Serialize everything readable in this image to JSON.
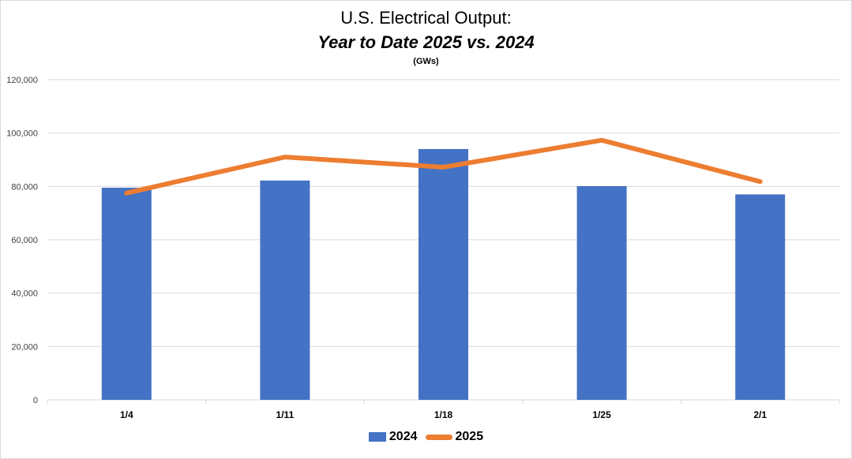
{
  "chart_data": {
    "type": "bar",
    "title": "U.S. Electrical Output:",
    "subtitle": "Year to Date 2025 vs. 2024",
    "unit_note": "(GWs)",
    "categories": [
      "1/4",
      "1/11",
      "1/18",
      "1/25",
      "2/1"
    ],
    "ylim": [
      0,
      120000
    ],
    "yticks": [
      0,
      20000,
      40000,
      60000,
      80000,
      100000,
      120000
    ],
    "ytick_labels": [
      "0",
      "20,000",
      "40,000",
      "60,000",
      "80,000",
      "100,000",
      "120,000"
    ],
    "grid": true,
    "legend_position": "bottom",
    "series": [
      {
        "name": "2024",
        "type": "bar",
        "color": "#4472c4",
        "values": [
          79500,
          82200,
          94000,
          80100,
          77000
        ]
      },
      {
        "name": "2025",
        "type": "line",
        "color": "#ed7d31",
        "values": [
          77500,
          91000,
          87200,
          97300,
          81800
        ]
      }
    ]
  }
}
